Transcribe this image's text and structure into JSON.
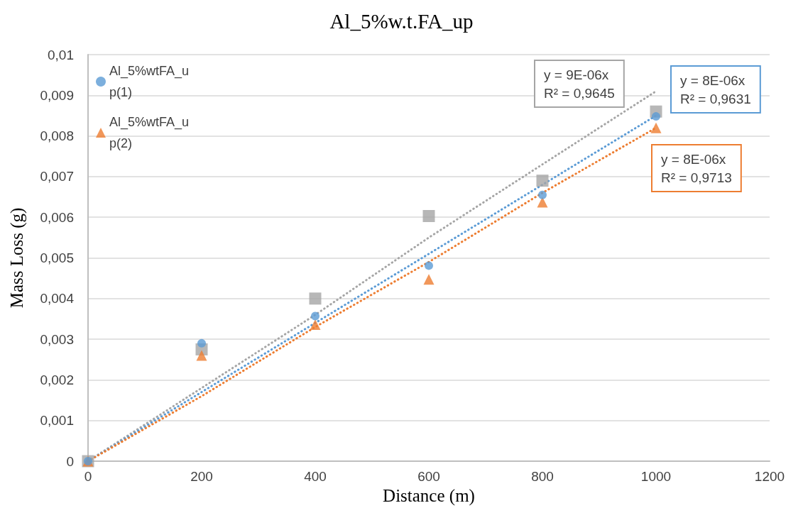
{
  "chart_data": {
    "type": "scatter",
    "title": "Al_5%w.t.FA_up",
    "xlabel": "Distance (m)",
    "ylabel": "Mass Loss (g)",
    "x": [
      0,
      200,
      400,
      600,
      800,
      1000
    ],
    "series": [
      {
        "name": "Al_5%wtFA_up(1)",
        "color": "#5b9bd5",
        "marker": "circle",
        "values": [
          0,
          0.0029,
          0.00357,
          0.00481,
          0.00655,
          0.00848
        ]
      },
      {
        "name": "Al_5%wtFA_up(2)",
        "color": "#ed7d31",
        "marker": "triangle",
        "values": [
          0,
          0.0026,
          0.00336,
          0.00447,
          0.00637,
          0.0082
        ]
      },
      {
        "color": "#a5a5a5",
        "marker": "square",
        "values": [
          0,
          0.00275,
          0.004,
          0.00603,
          0.0069,
          0.0086
        ]
      },
      {
        "type": "line",
        "color": "#a5a5a5",
        "marker": "none",
        "line_style": "dotted",
        "values": [
          0,
          0.0018,
          0.0036,
          0.0055,
          0.0073,
          0.0091
        ]
      },
      {
        "type": "line",
        "color": "#5b9bd5",
        "marker": "none",
        "line_style": "dotted",
        "values": [
          0,
          0.0017,
          0.0034,
          0.0051,
          0.0068,
          0.0085
        ]
      },
      {
        "type": "line",
        "color": "#ed7d31",
        "marker": "none",
        "line_style": "dotted",
        "values": [
          0,
          0.0016,
          0.0033,
          0.0049,
          0.0066,
          0.0082
        ]
      }
    ],
    "annotations": [
      "y = 9E-06x\nR² = 0,9645",
      "y = 8E-06x\nR² = 0,9631",
      "y = 8E-06x\nR² = 0,9713"
    ],
    "xlim": [
      0,
      1200
    ],
    "xticks": [
      0,
      200,
      400,
      600,
      800,
      1000,
      1200
    ],
    "ylim": [
      0,
      0.01
    ],
    "yticks": [
      {
        "value": 0,
        "label": "0"
      },
      {
        "value": 0.001,
        "label": "0,001"
      },
      {
        "value": 0.002,
        "label": "0,002"
      },
      {
        "value": 0.003,
        "label": "0,003"
      },
      {
        "value": 0.004,
        "label": "0,004"
      },
      {
        "value": 0.005,
        "label": "0,005"
      },
      {
        "value": 0.006,
        "label": "0,006"
      },
      {
        "value": 0.007,
        "label": "0,007"
      },
      {
        "value": 0.008,
        "label": "0,008"
      },
      {
        "value": 0.009,
        "label": "0,009"
      },
      {
        "value": 0.01,
        "label": "0,01"
      }
    ],
    "grid": "y",
    "legend": "top left"
  }
}
